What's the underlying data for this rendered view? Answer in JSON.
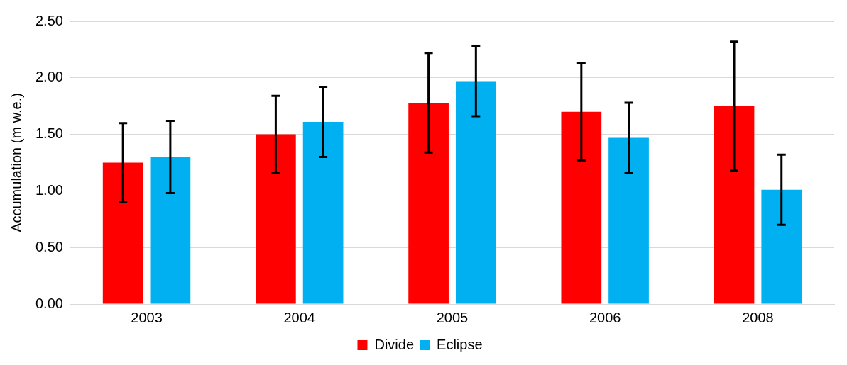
{
  "chart_data": {
    "type": "bar",
    "ylabel": "Accumulation (m w.e.)",
    "categories": [
      "2003",
      "2004",
      "2005",
      "2006",
      "2008"
    ],
    "series": [
      {
        "name": "Divide",
        "color": "#ff0000",
        "values": [
          1.25,
          1.5,
          1.78,
          1.7,
          1.75
        ],
        "errors": [
          0.35,
          0.34,
          0.44,
          0.43,
          0.57
        ]
      },
      {
        "name": "Eclipse",
        "color": "#00b0f0",
        "values": [
          1.3,
          1.61,
          1.97,
          1.47,
          1.01
        ],
        "errors": [
          0.32,
          0.31,
          0.31,
          0.31,
          0.31
        ]
      }
    ],
    "ylim": [
      0,
      2.5
    ],
    "yticks": [
      {
        "value": 0,
        "label": "0.00"
      },
      {
        "value": 0.5,
        "label": "0.50"
      },
      {
        "value": 1,
        "label": "1.00"
      },
      {
        "value": 1.5,
        "label": "1.50"
      },
      {
        "value": 2,
        "label": "2.00"
      },
      {
        "value": 2.5,
        "label": "2.50"
      }
    ],
    "grid": "y",
    "legend": "bottom"
  }
}
